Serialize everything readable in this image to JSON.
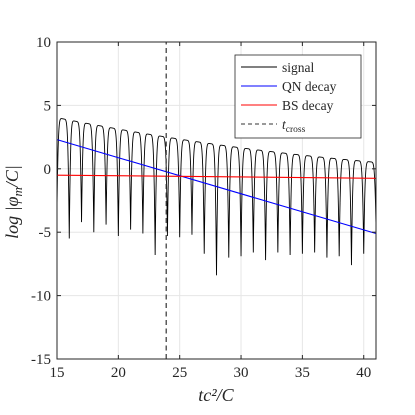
{
  "chart_data": {
    "type": "line",
    "xlabel": "tc²/C",
    "ylabel": "log |φm/C|",
    "xlim": [
      15,
      41
    ],
    "ylim": [
      -15,
      10
    ],
    "x_ticks": [
      15,
      20,
      25,
      30,
      35,
      40
    ],
    "y_ticks": [
      10,
      5,
      0,
      -5,
      -10,
      -15
    ],
    "grid": true,
    "legend_position": "top-right",
    "legend": {
      "signal": "signal",
      "qn": "QN decay",
      "bs": "BS decay",
      "cross_main": "t",
      "cross_sub": "cross"
    },
    "series": [
      {
        "name": "signal",
        "color": "#000000",
        "style": "solid",
        "peak_times": [
          15.5,
          16.5,
          17.5,
          18.5,
          19.5,
          20.5,
          21.5,
          22.5,
          23.5,
          24.5,
          25.5,
          26.5,
          27.5,
          28.5,
          29.5,
          30.5,
          31.5,
          32.5,
          33.5,
          34.5,
          35.5,
          36.5,
          37.5,
          38.5,
          39.5,
          40.5
        ],
        "dip_times": [
          15.0,
          16.0,
          17.0,
          18.0,
          19.0,
          20.0,
          21.0,
          22.0,
          23.0,
          24.0,
          25.0,
          26.0,
          27.0,
          28.0,
          29.0,
          30.0,
          31.0,
          32.0,
          33.0,
          34.0,
          35.0,
          36.0,
          37.0,
          38.0,
          39.0,
          40.0,
          41.0
        ],
        "dip_values": [
          -3.0,
          -5.5,
          -4.2,
          -5.0,
          -4.4,
          -5.3,
          -4.8,
          -5.1,
          -6.8,
          -5.3,
          -5.4,
          -5.2,
          -6.7,
          -8.4,
          -7.0,
          -6.9,
          -6.6,
          -7.2,
          -6.6,
          -6.8,
          -6.7,
          -6.6,
          -7.0,
          -6.9,
          -7.6,
          -6.7,
          -4.5
        ]
      },
      {
        "name": "QN decay",
        "color": "#0000ff",
        "style": "solid",
        "x": [
          15,
          41
        ],
        "y": [
          2.3,
          -5.1
        ]
      },
      {
        "name": "BS decay",
        "color": "#ff0000",
        "style": "solid",
        "x": [
          15,
          41
        ],
        "y": [
          -0.5,
          -0.75
        ]
      },
      {
        "name": "t_cross",
        "color": "#333333",
        "style": "dashed",
        "x": [
          23.9,
          23.9
        ],
        "y": [
          -15,
          10
        ]
      }
    ]
  }
}
